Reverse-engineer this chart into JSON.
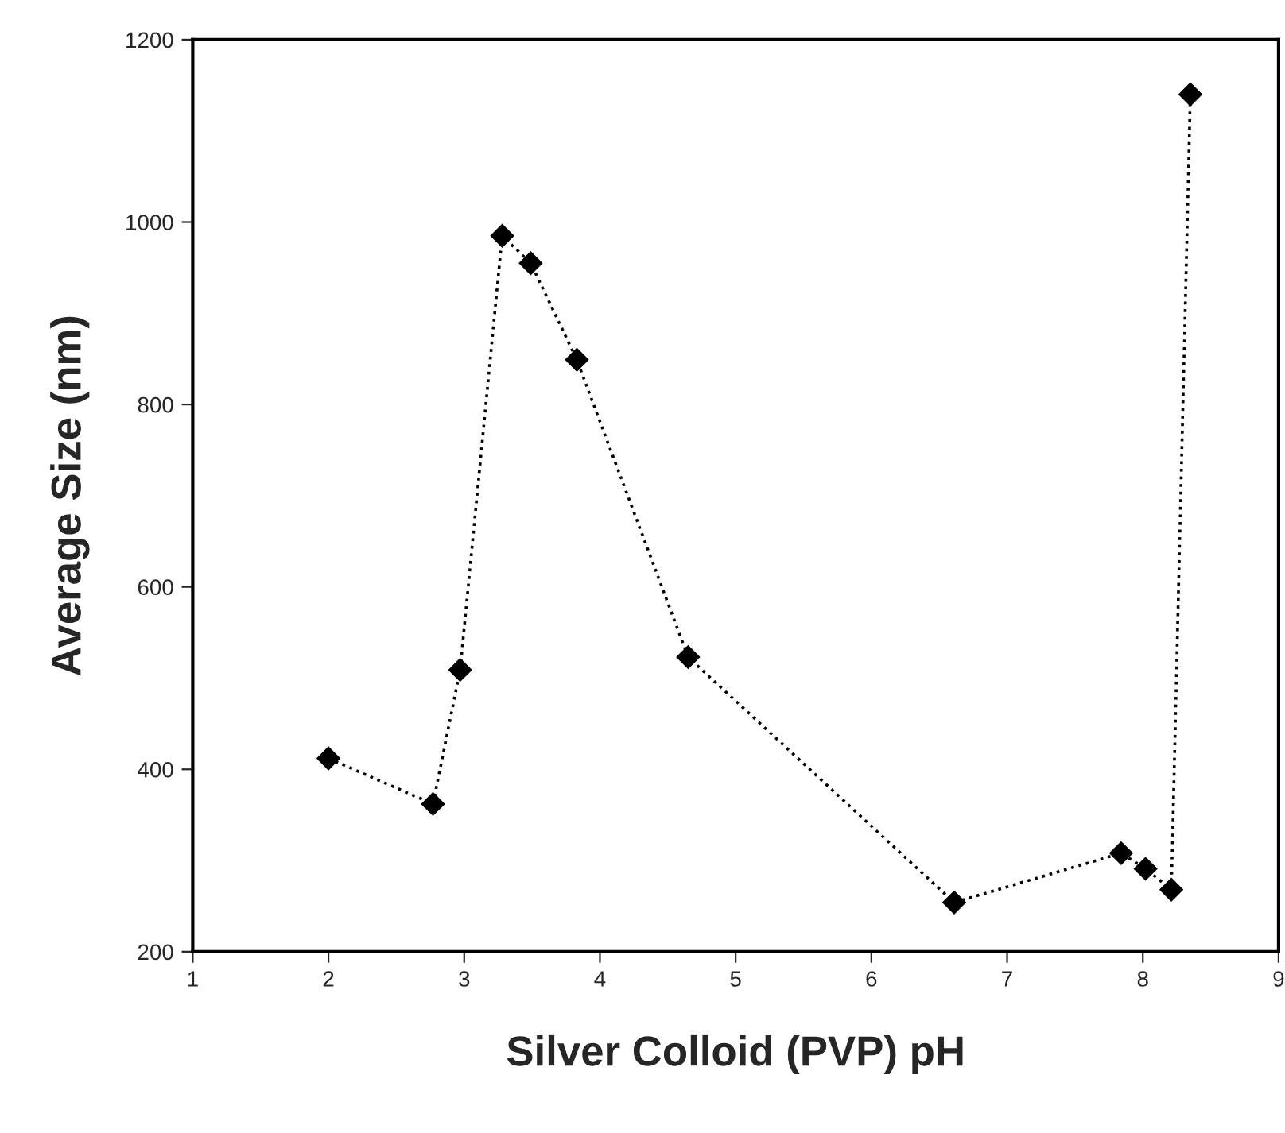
{
  "chart_data": {
    "type": "line",
    "xlabel": "Silver Colloid (PVP) pH",
    "ylabel": "Average Size (nm)",
    "x": [
      2.0,
      2.77,
      2.97,
      3.28,
      3.49,
      3.83,
      4.65,
      6.61,
      7.84,
      8.02,
      8.21,
      8.35
    ],
    "series": [
      {
        "color": "#000000",
        "values": [
          412,
          362,
          509,
          985,
          955,
          849,
          523,
          254,
          308,
          291,
          268,
          1140
        ]
      }
    ],
    "xlim": [
      1,
      9
    ],
    "xticks": [
      1,
      2,
      3,
      4,
      5,
      6,
      7,
      8,
      9
    ],
    "ylim": [
      200,
      1200
    ],
    "yticks": [
      200,
      400,
      600,
      800,
      1000,
      1200
    ],
    "grid": false,
    "marker": "diamond",
    "line_style": "dotted"
  }
}
